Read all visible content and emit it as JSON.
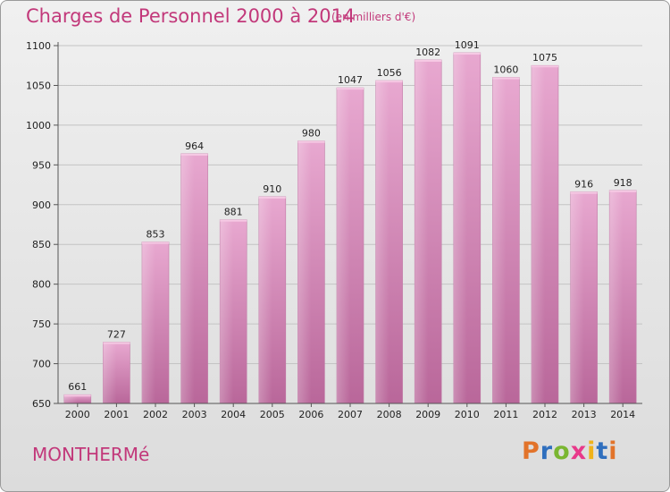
{
  "header": {
    "title": "Charges de Personnel 2000 à 2014",
    "subtitle": "(en milliers d'€)"
  },
  "commune": "MONTHERMé",
  "logo": {
    "text": "Proxiti",
    "colors": [
      "#e2732a",
      "#2f6fbe",
      "#7ab631",
      "#e8398a",
      "#f0b31b",
      "#2f6fbe",
      "#e2732a"
    ]
  },
  "chart_data": {
    "type": "bar",
    "title": "Charges de Personnel 2000 à 2014",
    "subtitle": "(en milliers d'€)",
    "xlabel": "",
    "ylabel": "",
    "categories": [
      "2000",
      "2001",
      "2002",
      "2003",
      "2004",
      "2005",
      "2006",
      "2007",
      "2008",
      "2009",
      "2010",
      "2011",
      "2012",
      "2013",
      "2014"
    ],
    "values": [
      661,
      727,
      853,
      964,
      881,
      910,
      980,
      1047,
      1056,
      1082,
      1091,
      1060,
      1075,
      916,
      918
    ],
    "ylim": [
      650,
      1100
    ],
    "yticks": [
      650,
      700,
      750,
      800,
      850,
      900,
      950,
      1000,
      1050,
      1100
    ],
    "grid": true,
    "bar_color": "#d98fbd"
  }
}
